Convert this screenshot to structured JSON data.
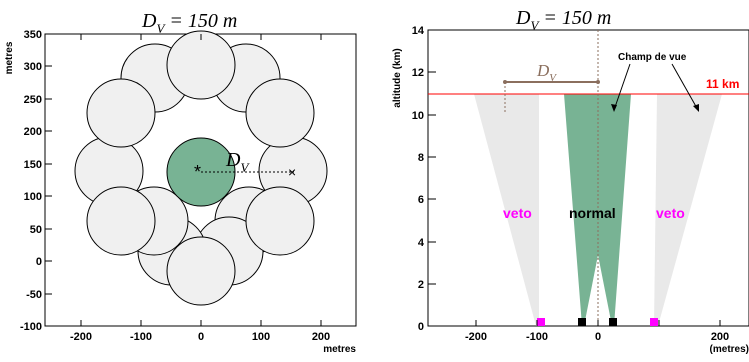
{
  "left_panel": {
    "title_main": "D",
    "title_sub": "V",
    "title_rest": " = 150 m",
    "ylabel": "metres",
    "xlabel": "metres",
    "x_ticks": [
      "-200",
      "-100",
      "0",
      "100",
      "200"
    ],
    "y_ticks": [
      "-100",
      "-50",
      "0",
      "50",
      "100",
      "150",
      "200",
      "250",
      "300",
      "350"
    ],
    "dv_label_main": "D",
    "dv_label_sub": "V",
    "center_marker": "*",
    "end_marker": "×"
  },
  "right_panel": {
    "title_main": "D",
    "title_sub": "V",
    "title_rest": " = 150 m",
    "ylabel": "altitude (km)",
    "xlabel": "(metres)",
    "x_ticks": [
      "-200",
      "-100",
      "0",
      "100",
      "200"
    ],
    "y_ticks": [
      "0",
      "2",
      "4",
      "6",
      "8",
      "10",
      "12",
      "14"
    ],
    "dv_label_main": "D",
    "dv_label_sub": "V",
    "fov_label": "Champ de vue",
    "altitude_line_label": "11 km",
    "veto_left": "veto",
    "normal": "normal",
    "veto_right": "veto"
  },
  "colors": {
    "green": "#78b394",
    "grey_fill": "#f0f0f0",
    "light_cone": "#e9e9e9",
    "magenta": "#ff00ff",
    "red": "#ff0000",
    "brown": "#8b6f5e"
  }
}
